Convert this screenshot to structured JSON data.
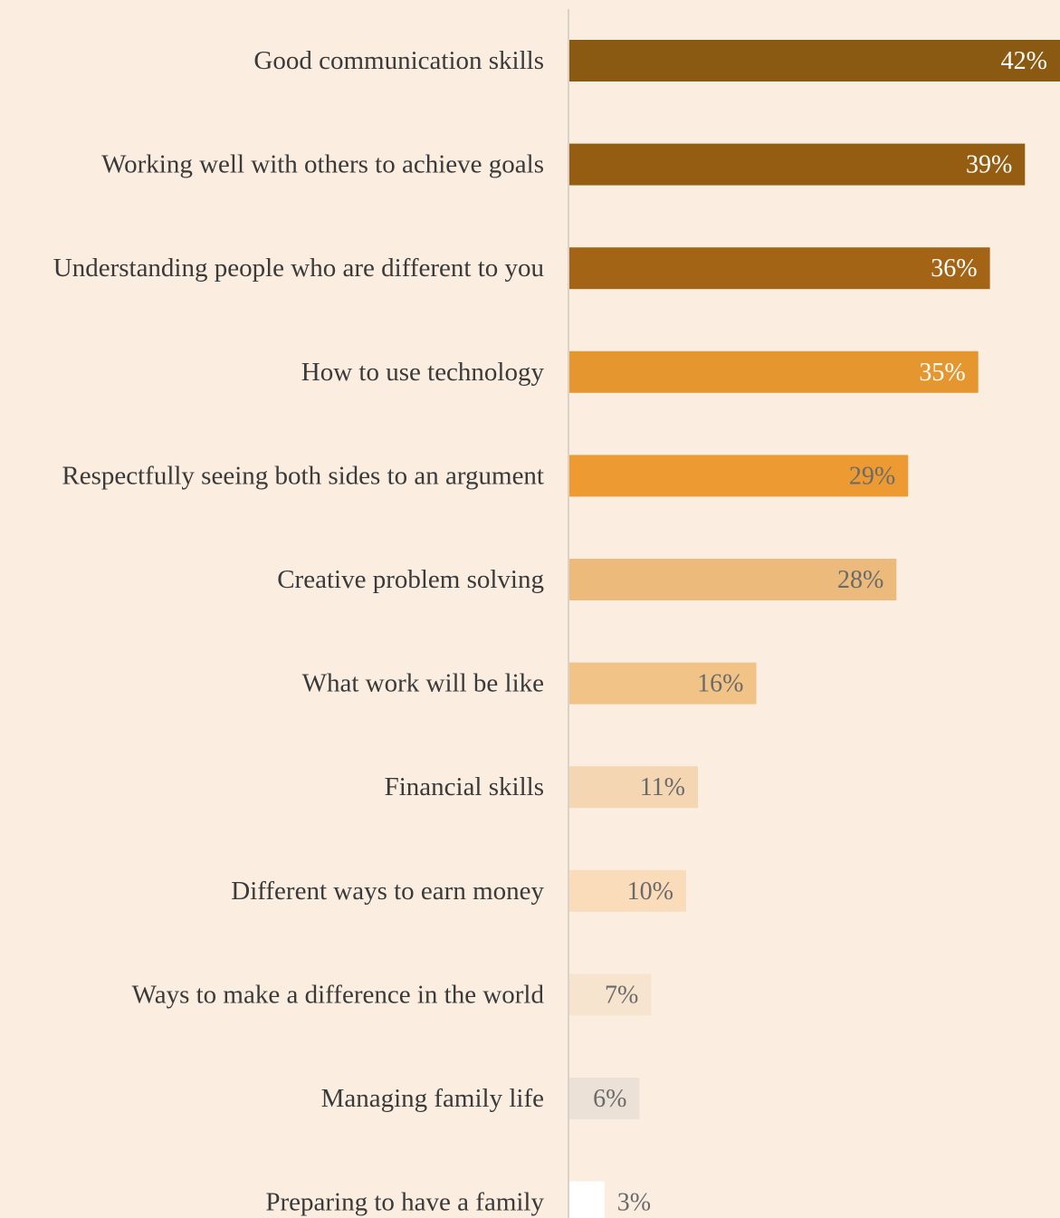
{
  "chart_data": {
    "type": "bar",
    "orientation": "horizontal",
    "categories": [
      "Good communication skills",
      "Working well with others to achieve goals",
      "Understanding people who are different to you",
      "How to use technology",
      "Respectfully seeing both sides to an argument",
      "Creative problem solving",
      "What work will be like",
      "Financial skills",
      "Different ways to earn money",
      "Ways to make a difference in the world",
      "Managing family life",
      "Preparing to have a family"
    ],
    "values": [
      42,
      39,
      36,
      35,
      29,
      28,
      16,
      11,
      10,
      7,
      6,
      3
    ],
    "value_labels": [
      "42%",
      "39%",
      "36%",
      "35%",
      "29%",
      "28%",
      "16%",
      "11%",
      "10%",
      "7%",
      "6%",
      "3%"
    ],
    "bar_colors": [
      "#8b5a12",
      "#955d12",
      "#a46416",
      "#e6962e",
      "#ec9a31",
      "#ecbb7c",
      "#f1c386",
      "#f5d6b3",
      "#fadcbb",
      "#f7e4cf",
      "#ebe1d6",
      "#ffffff"
    ],
    "label_colors": [
      "#ffffff",
      "#ffffff",
      "#ffffff",
      "#ffffff",
      "#6a6a6a",
      "#6a6a6a",
      "#6a6a6a",
      "#6a6a6a",
      "#6a6a6a",
      "#6a6a6a",
      "#6a6a6a",
      "#6a6a6a"
    ],
    "xlim": [
      0,
      42
    ],
    "title": "",
    "xlabel": "",
    "ylabel": "",
    "grid": false,
    "axis_color": "#d9d2c9",
    "background": "#fbede0"
  }
}
